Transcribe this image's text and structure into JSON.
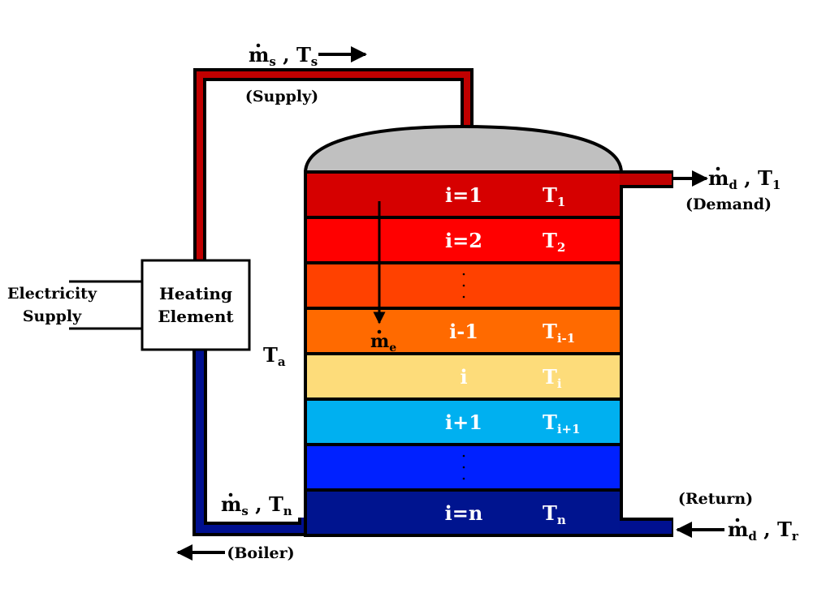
{
  "labels": {
    "ms_ts": {
      "m": "m",
      "m_sub": "s",
      "sep": " , ",
      "t": "T",
      "t_sub": "s"
    },
    "supply": "(Supply)",
    "md_t1": {
      "m": "m",
      "m_sub": "d",
      "sep": " , ",
      "t": "T",
      "t_sub": "1"
    },
    "demand": "(Demand)",
    "electricity_line1": "Electricity",
    "electricity_line2": "Supply",
    "heating_line1": "Heating",
    "heating_line2": "Element",
    "ta": {
      "t": "T",
      "t_sub": "a"
    },
    "ms_tn": {
      "m": "m",
      "m_sub": "s",
      "sep": " , ",
      "t": "T",
      "t_sub": "n"
    },
    "boiler": "(Boiler)",
    "return": "(Return)",
    "md_tr": {
      "m": "m",
      "m_sub": "d",
      "sep": " , ",
      "t": "T",
      "t_sub": "r"
    },
    "me": {
      "m": "m",
      "m_sub": "e"
    }
  },
  "layers": [
    {
      "index": "i=1",
      "temp": "T",
      "temp_sub": "1",
      "color": "#d60000",
      "text_color": "#ffffff"
    },
    {
      "index": "i=2",
      "temp": "T",
      "temp_sub": "2",
      "color": "#ff0000",
      "text_color": "#ffffff"
    },
    {
      "index": "⋮",
      "temp": "",
      "temp_sub": "",
      "color": "#ff4100",
      "text_color": "#ffffff"
    },
    {
      "index": "i-1",
      "temp": "T",
      "temp_sub": "i-1",
      "color": "#ff6a00",
      "text_color": "#ffffff"
    },
    {
      "index": "i",
      "temp": "T",
      "temp_sub": "i",
      "color": "#fddc7a",
      "text_color": "#ffffff"
    },
    {
      "index": "i+1",
      "temp": "T",
      "temp_sub": "i+1",
      "color": "#00b0f0",
      "text_color": "#ffffff"
    },
    {
      "index": "⋮",
      "temp": "",
      "temp_sub": "",
      "color": "#0021ff",
      "text_color": "#ffffff"
    },
    {
      "index": "i=n",
      "temp": "T",
      "temp_sub": "n",
      "color": "#00148f",
      "text_color": "#ffffff"
    }
  ],
  "colors": {
    "hot_pipe": "#c00000",
    "cold_pipe": "#001090",
    "dome": "#c0c0c0"
  }
}
